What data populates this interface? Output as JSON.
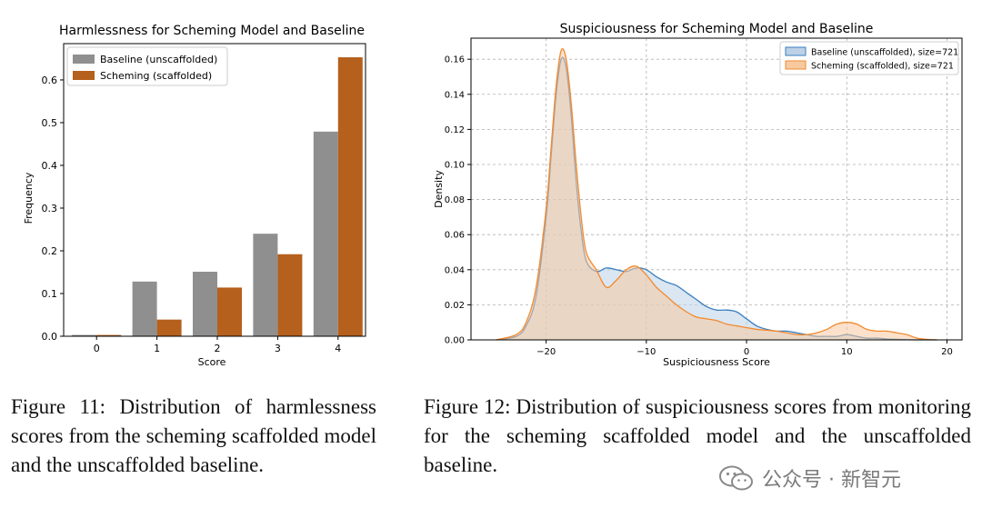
{
  "chart_data": [
    {
      "type": "bar",
      "title": "Harmlessness for Scheming Model and Baseline",
      "xlabel": "Score",
      "ylabel": "Frequency",
      "categories": [
        "0",
        "1",
        "2",
        "3",
        "4"
      ],
      "ylim": [
        0,
        0.685
      ],
      "yticks": [
        0.0,
        0.1,
        0.2,
        0.3,
        0.4,
        0.5,
        0.6
      ],
      "ytick_labels": [
        "0.0",
        "0.1",
        "0.2",
        "0.3",
        "0.4",
        "0.5",
        "0.6"
      ],
      "legend_position": "top-left",
      "grid": false,
      "series": [
        {
          "name": "Baseline (unscaffolded)",
          "color": "#8f8f8f",
          "values": [
            0.003,
            0.128,
            0.151,
            0.24,
            0.479
          ]
        },
        {
          "name": "Scheming (scaffolded)",
          "color": "#b5601c",
          "values": [
            0.003,
            0.039,
            0.114,
            0.192,
            0.653
          ]
        }
      ]
    },
    {
      "type": "area",
      "title": "Suspiciousness for Scheming Model and Baseline",
      "xlabel": "Suspiciousness Score",
      "ylabel": "Density",
      "xlim": [
        -27.5,
        21.5
      ],
      "ylim": [
        0,
        0.172
      ],
      "xticks": [
        -20,
        -10,
        0,
        10,
        20
      ],
      "xtick_labels": [
        "−20",
        "−10",
        "0",
        "10",
        "20"
      ],
      "yticks": [
        0.0,
        0.02,
        0.04,
        0.06,
        0.08,
        0.1,
        0.12,
        0.14,
        0.16
      ],
      "ytick_labels": [
        "0.00",
        "0.02",
        "0.04",
        "0.06",
        "0.08",
        "0.10",
        "0.12",
        "0.14",
        "0.16"
      ],
      "grid": true,
      "legend_position": "top-right",
      "series": [
        {
          "name": "Baseline (unscaffolded), size=721",
          "color": "#3a7ebf",
          "fill": "#bcd1e6",
          "x": [
            -25,
            -23,
            -22,
            -21,
            -20,
            -19.5,
            -19,
            -18.5,
            -18,
            -17.5,
            -17,
            -16.5,
            -16,
            -15,
            -14,
            -13,
            -12,
            -11,
            -10,
            -9,
            -8,
            -7,
            -6,
            -5,
            -4,
            -3,
            -2,
            -1,
            0,
            1,
            2,
            3,
            4,
            5,
            6,
            7,
            8,
            9,
            10,
            11,
            12,
            13,
            14,
            15,
            16,
            17,
            18,
            19
          ],
          "y": [
            0.0,
            0.002,
            0.008,
            0.025,
            0.07,
            0.105,
            0.14,
            0.16,
            0.155,
            0.128,
            0.09,
            0.062,
            0.045,
            0.039,
            0.041,
            0.04,
            0.039,
            0.041,
            0.04,
            0.036,
            0.033,
            0.031,
            0.027,
            0.023,
            0.019,
            0.017,
            0.017,
            0.016,
            0.012,
            0.008,
            0.006,
            0.005,
            0.005,
            0.004,
            0.003,
            0.002,
            0.002,
            0.002,
            0.003,
            0.002,
            0.001,
            0.001,
            0.0005,
            0.0003,
            0.0001,
            0.0,
            0.0,
            0.0
          ]
        },
        {
          "name": "Scheming (scaffolded), size=721",
          "color": "#f28a2e",
          "fill": "#f7c9a0",
          "x": [
            -25,
            -23,
            -22,
            -21,
            -20,
            -19.5,
            -19,
            -18.5,
            -18,
            -17.5,
            -17,
            -16.5,
            -16,
            -15,
            -14,
            -13,
            -12,
            -11,
            -10,
            -9,
            -8,
            -7,
            -6,
            -5,
            -4,
            -3,
            -2,
            -1,
            0,
            1,
            2,
            3,
            4,
            5,
            6,
            7,
            8,
            9,
            10,
            11,
            12,
            13,
            14,
            15,
            16,
            17,
            18,
            19
          ],
          "y": [
            0.0,
            0.003,
            0.01,
            0.03,
            0.075,
            0.11,
            0.145,
            0.165,
            0.16,
            0.135,
            0.1,
            0.07,
            0.05,
            0.04,
            0.03,
            0.034,
            0.04,
            0.042,
            0.037,
            0.03,
            0.025,
            0.02,
            0.016,
            0.013,
            0.012,
            0.011,
            0.009,
            0.008,
            0.007,
            0.006,
            0.0055,
            0.005,
            0.004,
            0.003,
            0.003,
            0.004,
            0.006,
            0.009,
            0.01,
            0.009,
            0.006,
            0.005,
            0.005,
            0.004,
            0.003,
            0.001,
            0.0003,
            0.0
          ]
        }
      ]
    }
  ],
  "captions": {
    "fig11": "Figure 11: Distribution of harmlessness scores from the scheming scaffolded model and the unscaffolded baseline.",
    "fig12": "Figure 12: Distribution of suspiciousness scores from monitoring for the scheming scaffolded model and the unscaffolded baseline."
  },
  "watermark": {
    "text": "公众号 · 新智元",
    "icon": "wechat-icon"
  }
}
